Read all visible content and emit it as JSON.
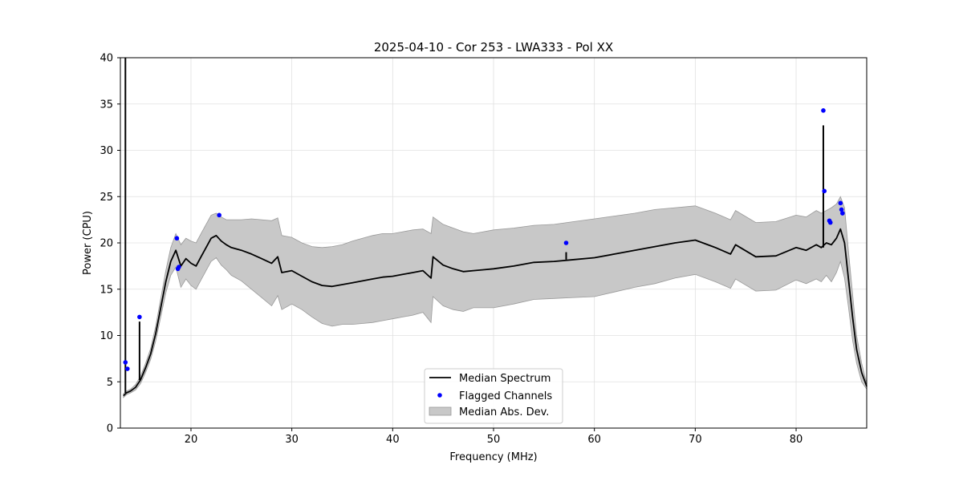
{
  "chart_data": {
    "type": "line",
    "title": "2025-04-10 - Cor 253 - LWA333 - Pol XX",
    "xlabel": "Frequency (MHz)",
    "ylabel": "Power (CPU)",
    "xlim": [
      13.0,
      87.0
    ],
    "ylim": [
      0,
      40
    ],
    "xticks": [
      20,
      30,
      40,
      50,
      60,
      70,
      80
    ],
    "yticks": [
      0,
      5,
      10,
      15,
      20,
      25,
      30,
      35,
      40
    ],
    "grid": true,
    "legend_position": "bottom-center",
    "legend": [
      "Median Spectrum",
      "Flagged Channels",
      "Median Abs. Dev."
    ],
    "colors": {
      "median_line": "#000000",
      "flagged": "#0000ff",
      "mad_fill": "#c8c8c8",
      "mad_edge": "#999999",
      "grid": "#e0e0e0"
    },
    "series": [
      {
        "name": "Median Spectrum",
        "x": [
          13.3,
          13.6,
          14.0,
          14.5,
          15.0,
          15.5,
          16.0,
          16.5,
          17.0,
          17.5,
          18.0,
          18.5,
          19.0,
          19.5,
          20.0,
          20.5,
          21.0,
          21.5,
          22.0,
          22.5,
          23.0,
          23.5,
          24.0,
          25.0,
          26.0,
          27.0,
          28.0,
          28.6,
          29.0,
          30.0,
          31.0,
          32.0,
          33.0,
          34.0,
          35.0,
          36.0,
          37.0,
          38.0,
          39.0,
          40.0,
          41.0,
          42.0,
          43.0,
          43.8,
          44.0,
          45.0,
          46.0,
          47.0,
          48.0,
          49.0,
          50.0,
          52.0,
          54.0,
          56.0,
          58.0,
          60.0,
          62.0,
          64.0,
          66.0,
          68.0,
          70.0,
          72.0,
          73.5,
          74.0,
          76.0,
          78.0,
          80.0,
          81.0,
          82.0,
          82.5,
          83.0,
          83.5,
          84.0,
          84.4,
          84.8,
          85.2,
          85.6,
          86.0,
          86.5,
          87.0
        ],
        "values": [
          3.5,
          3.8,
          4.0,
          4.4,
          5.2,
          6.5,
          8.0,
          10.2,
          13.0,
          15.8,
          18.0,
          19.2,
          17.5,
          18.3,
          17.8,
          17.5,
          18.5,
          19.5,
          20.5,
          20.8,
          20.2,
          19.8,
          19.5,
          19.2,
          18.8,
          18.3,
          17.8,
          18.5,
          16.8,
          17.0,
          16.4,
          15.8,
          15.4,
          15.3,
          15.5,
          15.7,
          15.9,
          16.1,
          16.3,
          16.4,
          16.6,
          16.8,
          17.0,
          16.2,
          18.5,
          17.6,
          17.2,
          16.9,
          17.0,
          17.1,
          17.2,
          17.5,
          17.9,
          18.0,
          18.2,
          18.4,
          18.8,
          19.2,
          19.6,
          20.0,
          20.3,
          19.5,
          18.8,
          19.8,
          18.5,
          18.6,
          19.5,
          19.2,
          19.8,
          19.5,
          20.0,
          19.8,
          20.5,
          21.5,
          20.0,
          16.0,
          12.0,
          8.5,
          6.0,
          4.5
        ]
      },
      {
        "name": "Median Abs. Dev.",
        "x": [
          13.3,
          13.6,
          14.0,
          14.5,
          15.0,
          15.5,
          16.0,
          16.5,
          17.0,
          17.5,
          18.0,
          18.5,
          19.0,
          19.5,
          20.0,
          20.5,
          21.0,
          21.5,
          22.0,
          22.5,
          23.0,
          23.5,
          24.0,
          25.0,
          26.0,
          27.0,
          28.0,
          28.6,
          29.0,
          30.0,
          31.0,
          32.0,
          33.0,
          34.0,
          35.0,
          36.0,
          37.0,
          38.0,
          39.0,
          40.0,
          41.0,
          42.0,
          43.0,
          43.8,
          44.0,
          45.0,
          46.0,
          47.0,
          48.0,
          49.0,
          50.0,
          52.0,
          54.0,
          56.0,
          58.0,
          60.0,
          62.0,
          64.0,
          66.0,
          68.0,
          70.0,
          72.0,
          73.5,
          74.0,
          76.0,
          78.0,
          80.0,
          81.0,
          82.0,
          82.5,
          83.0,
          83.5,
          84.0,
          84.4,
          84.8,
          85.2,
          85.6,
          86.0,
          86.5,
          87.0
        ],
        "upper": [
          3.7,
          4.0,
          4.2,
          4.7,
          5.6,
          7.0,
          8.6,
          11.0,
          14.0,
          17.0,
          19.5,
          21.0,
          19.8,
          20.5,
          20.2,
          20.0,
          21.0,
          22.0,
          23.0,
          23.2,
          22.8,
          22.5,
          22.5,
          22.5,
          22.6,
          22.5,
          22.4,
          22.7,
          20.8,
          20.6,
          20.0,
          19.6,
          19.5,
          19.6,
          19.8,
          20.2,
          20.5,
          20.8,
          21.0,
          21.0,
          21.2,
          21.4,
          21.5,
          21.0,
          22.8,
          22.0,
          21.6,
          21.2,
          21.0,
          21.2,
          21.4,
          21.6,
          21.9,
          22.0,
          22.3,
          22.6,
          22.9,
          23.2,
          23.6,
          23.8,
          24.0,
          23.2,
          22.5,
          23.5,
          22.2,
          22.3,
          23.0,
          22.8,
          23.5,
          23.2,
          23.5,
          23.8,
          24.2,
          25.0,
          23.8,
          19.0,
          14.5,
          10.0,
          7.0,
          4.8
        ],
        "lower": [
          3.3,
          3.6,
          3.8,
          4.1,
          4.8,
          6.0,
          7.4,
          9.4,
          12.0,
          14.6,
          16.5,
          17.4,
          15.2,
          16.1,
          15.4,
          15.0,
          16.0,
          17.0,
          18.0,
          18.4,
          17.6,
          17.1,
          16.5,
          15.9,
          15.0,
          14.1,
          13.2,
          14.3,
          12.8,
          13.4,
          12.8,
          12.0,
          11.3,
          11.0,
          11.2,
          11.2,
          11.3,
          11.4,
          11.6,
          11.8,
          12.0,
          12.2,
          12.5,
          11.4,
          14.2,
          13.2,
          12.8,
          12.6,
          13.0,
          13.0,
          13.0,
          13.4,
          13.9,
          14.0,
          14.1,
          14.2,
          14.7,
          15.2,
          15.6,
          16.2,
          16.6,
          15.8,
          15.1,
          16.1,
          14.8,
          14.9,
          16.0,
          15.6,
          16.1,
          15.8,
          16.5,
          15.8,
          16.8,
          18.0,
          16.2,
          13.0,
          9.5,
          7.0,
          5.0,
          4.2
        ]
      },
      {
        "name": "Flagged Channels",
        "x": [
          13.5,
          13.7,
          14.9,
          18.6,
          18.7,
          18.8,
          22.8,
          57.2,
          82.7,
          82.8,
          83.3,
          83.4,
          84.4,
          84.5,
          84.6
        ],
        "values": [
          7.1,
          6.4,
          12.0,
          20.5,
          17.2,
          17.4,
          23.0,
          20.0,
          34.3,
          25.6,
          22.4,
          22.2,
          24.3,
          23.6,
          23.2
        ]
      },
      {
        "name": "Spikes",
        "x": [
          13.5,
          14.9,
          57.2,
          82.7
        ],
        "values": [
          40.0,
          11.5,
          19.0,
          32.7
        ]
      }
    ]
  }
}
